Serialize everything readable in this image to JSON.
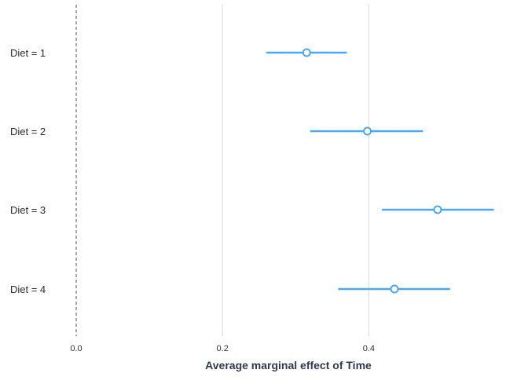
{
  "chart_data": {
    "type": "scatter",
    "subtype": "forest-plot",
    "title": "",
    "xlabel": "Average marginal effect of Time",
    "ylabel": "",
    "xlim": [
      0.0,
      0.58
    ],
    "xticks": [
      0.0,
      0.2,
      0.4
    ],
    "xtick_labels": [
      "0.0",
      "0.2",
      "0.4"
    ],
    "reference_line": 0.0,
    "grid": "vertical-major",
    "legend": "none",
    "categories": [
      "Diet = 1",
      "Diet = 2",
      "Diet = 3",
      "Diet = 4"
    ],
    "estimates": [
      0.315,
      0.398,
      0.494,
      0.435
    ],
    "ci_lower": [
      0.26,
      0.32,
      0.418,
      0.358
    ],
    "ci_upper": [
      0.37,
      0.474,
      0.571,
      0.511
    ],
    "colors": {
      "series": "#4aa8f0",
      "grid": "#d9d9d9",
      "reference": "#555555"
    }
  }
}
